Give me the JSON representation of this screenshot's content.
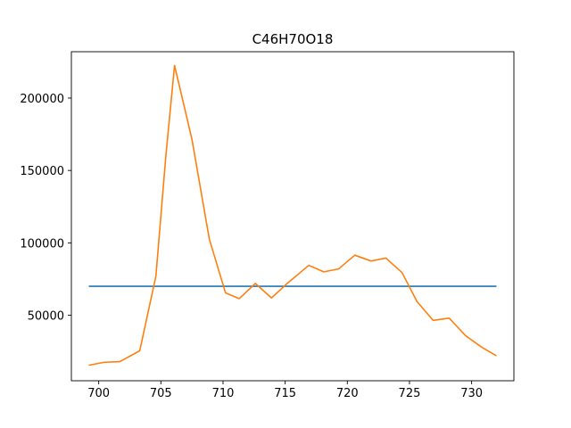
{
  "chart_data": {
    "type": "line",
    "title": "C46H70O18",
    "xlabel": "",
    "ylabel": "",
    "xlim": [
      697.8,
      733.4
    ],
    "ylim": [
      4800,
      232000
    ],
    "grid": false,
    "x_ticks": [
      700,
      705,
      710,
      715,
      720,
      725,
      730
    ],
    "y_ticks": [
      50000,
      100000,
      150000,
      200000
    ],
    "series": [
      {
        "color": "#1f77b4",
        "x": [
          699.2,
          732.0
        ],
        "values": [
          70000,
          70000
        ]
      },
      {
        "color": "#ff7f0e",
        "x": [
          699.2,
          700.4,
          701.7,
          703.3,
          704.6,
          705.4,
          706.1,
          707.5,
          708.9,
          710.2,
          711.3,
          712.6,
          713.9,
          715.1,
          716.9,
          718.1,
          719.3,
          720.6,
          721.9,
          723.1,
          724.4,
          725.6,
          726.9,
          728.2,
          729.5,
          730.8,
          732.0
        ],
        "values": [
          15500,
          17500,
          18000,
          25500,
          77000,
          160000,
          222500,
          171500,
          102500,
          65500,
          61500,
          72000,
          62000,
          71500,
          84500,
          80000,
          82000,
          91500,
          87500,
          89500,
          79500,
          59500,
          46500,
          48000,
          36000,
          28000,
          22000
        ]
      }
    ]
  }
}
